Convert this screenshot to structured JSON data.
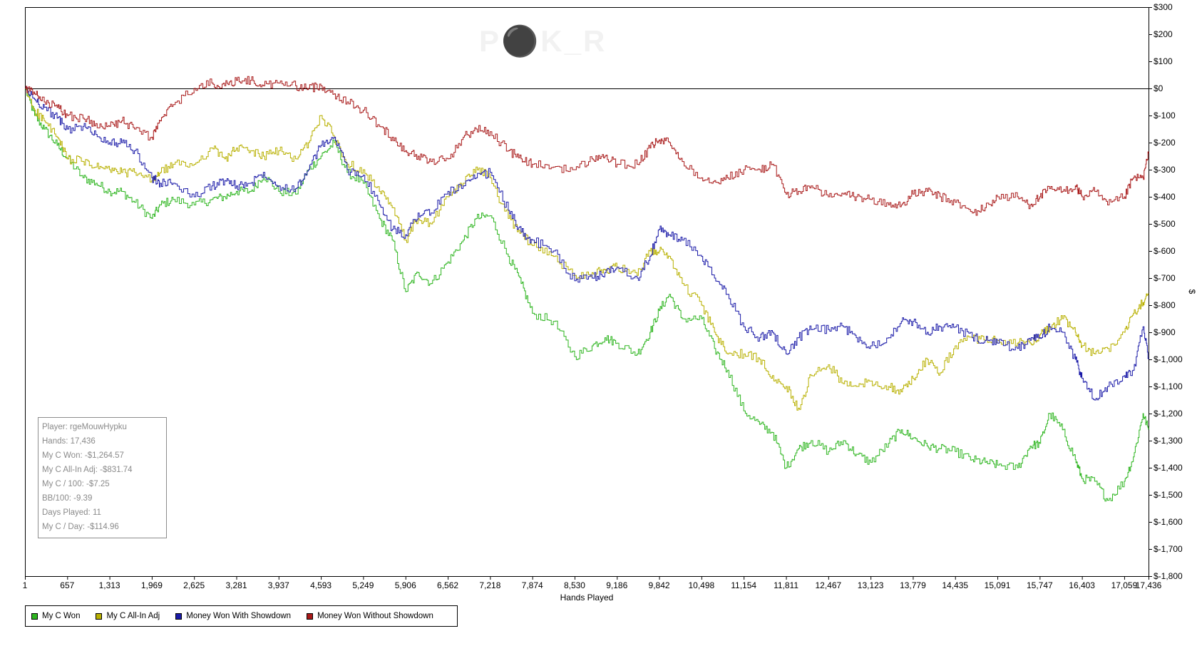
{
  "watermark": "P⚫K_R",
  "stats": {
    "player_label": "Player:",
    "player": "rgeMouwHypku",
    "hands_label": "Hands:",
    "hands": "17,436",
    "won_label": "My C Won:",
    "won": "-$1,264.57",
    "allin_label": "My C All-In Adj:",
    "allin": "-$831.74",
    "per100_label": "My C / 100:",
    "per100": "-$7.25",
    "bb100_label": "BB/100:",
    "bb100": "-9.39",
    "days_label": "Days Played:",
    "days": "11",
    "perday_label": "My C / Day:",
    "perday": "-$114.96"
  },
  "legend": [
    {
      "label": "My C Won",
      "color": "#2db51f"
    },
    {
      "label": "My C All-In Adj",
      "color": "#b8b000"
    },
    {
      "label": "Money Won With Showdown",
      "color": "#1a1aa8"
    },
    {
      "label": "Money Won Without Showdown",
      "color": "#a81818"
    }
  ],
  "chart_data": {
    "type": "line",
    "xlabel": "Hands Played",
    "ylabel": "$",
    "xlim": [
      1,
      17436
    ],
    "ylim": [
      -1800,
      300
    ],
    "x_ticks": [
      1,
      657,
      1313,
      1969,
      2625,
      3281,
      3937,
      4593,
      5249,
      5906,
      6562,
      7218,
      7874,
      8530,
      9186,
      9842,
      10498,
      11154,
      11811,
      12467,
      13123,
      13779,
      14435,
      15091,
      15747,
      16403,
      17059,
      17436
    ],
    "x_tick_labels": [
      "1",
      "657",
      "1,313",
      "1,969",
      "2,625",
      "3,281",
      "3,937",
      "4,593",
      "5,249",
      "5,906",
      "6,562",
      "7,218",
      "7,874",
      "8,530",
      "9,186",
      "9,842",
      "10,498",
      "11,154",
      "11,811",
      "12,467",
      "13,123",
      "13,779",
      "14,435",
      "15,091",
      "15,747",
      "16,403",
      "17,059",
      "17,436"
    ],
    "y_ticks": [
      300,
      200,
      100,
      0,
      -100,
      -200,
      -300,
      -400,
      -500,
      -600,
      -700,
      -800,
      -900,
      -1000,
      -1100,
      -1200,
      -1300,
      -1400,
      -1500,
      -1600,
      -1700,
      -1800
    ],
    "y_tick_labels": [
      "$300",
      "$200",
      "$100",
      "$0",
      "$-100",
      "$-200",
      "$-300",
      "$-400",
      "$-500",
      "$-600",
      "$-700",
      "$-800",
      "$-900",
      "$-1,000",
      "$-1,100",
      "$-1,200",
      "$-1,300",
      "$-1,400",
      "$-1,500",
      "$-1,600",
      "$-1,700",
      "$-1,800"
    ],
    "series": [
      {
        "name": "My C Won",
        "color": "#2db51f",
        "x": [
          1,
          150,
          300,
          500,
          657,
          900,
          1100,
          1313,
          1500,
          1700,
          1969,
          2100,
          2300,
          2625,
          2900,
          3100,
          3281,
          3500,
          3700,
          3937,
          4200,
          4400,
          4593,
          4800,
          5000,
          5249,
          5500,
          5700,
          5906,
          6100,
          6300,
          6562,
          6800,
          7000,
          7218,
          7500,
          7700,
          7874,
          8200,
          8530,
          8800,
          9000,
          9186,
          9500,
          9700,
          9842,
          10000,
          10200,
          10498,
          10700,
          10900,
          11154,
          11400,
          11600,
          11811,
          12000,
          12200,
          12467,
          12700,
          12900,
          13123,
          13400,
          13600,
          13779,
          14000,
          14200,
          14435,
          14700,
          14900,
          15091,
          15400,
          15600,
          15747,
          15900,
          16100,
          16300,
          16403,
          16600,
          16800,
          17059,
          17200,
          17350,
          17436
        ],
        "y": [
          0,
          -100,
          -150,
          -210,
          -260,
          -330,
          -350,
          -380,
          -380,
          -420,
          -480,
          -430,
          -410,
          -430,
          -410,
          -400,
          -380,
          -380,
          -320,
          -380,
          -390,
          -300,
          -250,
          -200,
          -310,
          -350,
          -480,
          -560,
          -750,
          -680,
          -720,
          -640,
          -560,
          -480,
          -470,
          -620,
          -720,
          -830,
          -860,
          -990,
          -950,
          -920,
          -940,
          -980,
          -900,
          -820,
          -760,
          -850,
          -850,
          -960,
          -1040,
          -1190,
          -1240,
          -1270,
          -1400,
          -1330,
          -1300,
          -1340,
          -1300,
          -1350,
          -1380,
          -1310,
          -1260,
          -1290,
          -1320,
          -1330,
          -1340,
          -1370,
          -1380,
          -1390,
          -1400,
          -1320,
          -1310,
          -1200,
          -1260,
          -1370,
          -1440,
          -1450,
          -1520,
          -1450,
          -1360,
          -1200,
          -1260
        ]
      },
      {
        "name": "My C All-In Adj",
        "color": "#b8b000",
        "x": [
          1,
          150,
          300,
          500,
          657,
          900,
          1100,
          1313,
          1500,
          1700,
          1969,
          2100,
          2300,
          2625,
          2900,
          3100,
          3281,
          3500,
          3700,
          3937,
          4200,
          4400,
          4593,
          4800,
          5000,
          5249,
          5500,
          5700,
          5906,
          6100,
          6300,
          6562,
          6800,
          7000,
          7218,
          7500,
          7700,
          7874,
          8200,
          8530,
          8800,
          9000,
          9186,
          9500,
          9700,
          9842,
          10000,
          10200,
          10498,
          10700,
          10900,
          11154,
          11400,
          11600,
          11811,
          12000,
          12200,
          12467,
          12700,
          12900,
          13123,
          13400,
          13600,
          13779,
          14000,
          14200,
          14435,
          14700,
          14900,
          15091,
          15400,
          15600,
          15747,
          15900,
          16100,
          16300,
          16403,
          16600,
          16800,
          17059,
          17200,
          17350,
          17436
        ],
        "y": [
          0,
          -80,
          -120,
          -180,
          -260,
          -270,
          -290,
          -300,
          -310,
          -310,
          -340,
          -310,
          -280,
          -280,
          -220,
          -260,
          -220,
          -230,
          -250,
          -230,
          -260,
          -200,
          -100,
          -180,
          -280,
          -300,
          -380,
          -440,
          -560,
          -480,
          -500,
          -400,
          -350,
          -290,
          -330,
          -480,
          -530,
          -580,
          -620,
          -690,
          -680,
          -670,
          -660,
          -690,
          -600,
          -600,
          -620,
          -720,
          -800,
          -900,
          -980,
          -980,
          -1000,
          -1060,
          -1100,
          -1180,
          -1060,
          -1020,
          -1090,
          -1100,
          -1080,
          -1100,
          -1120,
          -1070,
          -1000,
          -1050,
          -950,
          -920,
          -930,
          -930,
          -940,
          -940,
          -910,
          -880,
          -850,
          -900,
          -950,
          -980,
          -960,
          -900,
          -830,
          -790,
          -760
        ]
      },
      {
        "name": "Money Won With Showdown",
        "color": "#1a1aa8",
        "x": [
          1,
          150,
          300,
          500,
          657,
          900,
          1100,
          1313,
          1500,
          1700,
          1969,
          2100,
          2300,
          2625,
          2900,
          3100,
          3281,
          3500,
          3700,
          3937,
          4200,
          4400,
          4593,
          4800,
          5000,
          5249,
          5500,
          5700,
          5906,
          6100,
          6300,
          6562,
          6800,
          7000,
          7218,
          7500,
          7700,
          7874,
          8200,
          8530,
          8800,
          9000,
          9186,
          9500,
          9700,
          9842,
          10000,
          10200,
          10498,
          10700,
          10900,
          11154,
          11400,
          11600,
          11811,
          12000,
          12200,
          12467,
          12700,
          12900,
          13123,
          13400,
          13600,
          13779,
          14000,
          14200,
          14435,
          14700,
          14900,
          15091,
          15400,
          15600,
          15747,
          15900,
          16100,
          16300,
          16403,
          16600,
          16800,
          17059,
          17200,
          17350,
          17436
        ],
        "y": [
          0,
          -40,
          -70,
          -110,
          -150,
          -140,
          -170,
          -200,
          -200,
          -230,
          -330,
          -350,
          -350,
          -400,
          -360,
          -340,
          -360,
          -350,
          -310,
          -360,
          -370,
          -300,
          -210,
          -180,
          -300,
          -320,
          -430,
          -520,
          -540,
          -460,
          -460,
          -380,
          -360,
          -330,
          -310,
          -450,
          -530,
          -560,
          -600,
          -710,
          -700,
          -680,
          -660,
          -700,
          -620,
          -520,
          -540,
          -560,
          -620,
          -700,
          -760,
          -880,
          -920,
          -900,
          -980,
          -920,
          -890,
          -890,
          -880,
          -920,
          -950,
          -920,
          -860,
          -860,
          -900,
          -880,
          -880,
          -920,
          -930,
          -940,
          -960,
          -930,
          -920,
          -880,
          -900,
          -1000,
          -1070,
          -1150,
          -1100,
          -1060,
          -1040,
          -880,
          -1000
        ]
      },
      {
        "name": "Money Won Without Showdown",
        "color": "#a81818",
        "x": [
          1,
          150,
          300,
          500,
          657,
          900,
          1100,
          1313,
          1500,
          1700,
          1969,
          2100,
          2300,
          2625,
          2900,
          3100,
          3281,
          3500,
          3700,
          3937,
          4200,
          4400,
          4593,
          4800,
          5000,
          5249,
          5500,
          5700,
          5906,
          6100,
          6300,
          6562,
          6800,
          7000,
          7218,
          7500,
          7700,
          7874,
          8200,
          8530,
          8800,
          9000,
          9186,
          9500,
          9700,
          9842,
          10000,
          10200,
          10498,
          10700,
          10900,
          11154,
          11400,
          11600,
          11811,
          12000,
          12200,
          12467,
          12700,
          12900,
          13123,
          13400,
          13600,
          13779,
          14000,
          14200,
          14435,
          14700,
          14900,
          15091,
          15400,
          15600,
          15747,
          15900,
          16100,
          16300,
          16403,
          16600,
          16800,
          17059,
          17200,
          17350,
          17436
        ],
        "y": [
          0,
          -20,
          -50,
          -70,
          -100,
          -110,
          -130,
          -140,
          -120,
          -150,
          -180,
          -120,
          -60,
          0,
          20,
          10,
          30,
          30,
          10,
          20,
          10,
          0,
          10,
          -20,
          -50,
          -80,
          -140,
          -180,
          -230,
          -250,
          -270,
          -260,
          -180,
          -150,
          -160,
          -230,
          -260,
          -280,
          -290,
          -300,
          -260,
          -250,
          -280,
          -280,
          -220,
          -190,
          -200,
          -270,
          -330,
          -340,
          -330,
          -300,
          -300,
          -280,
          -390,
          -380,
          -360,
          -400,
          -390,
          -400,
          -410,
          -430,
          -430,
          -390,
          -380,
          -400,
          -420,
          -460,
          -440,
          -400,
          -400,
          -430,
          -400,
          -370,
          -380,
          -360,
          -400,
          -380,
          -430,
          -400,
          -330,
          -330,
          -240
        ]
      }
    ]
  }
}
